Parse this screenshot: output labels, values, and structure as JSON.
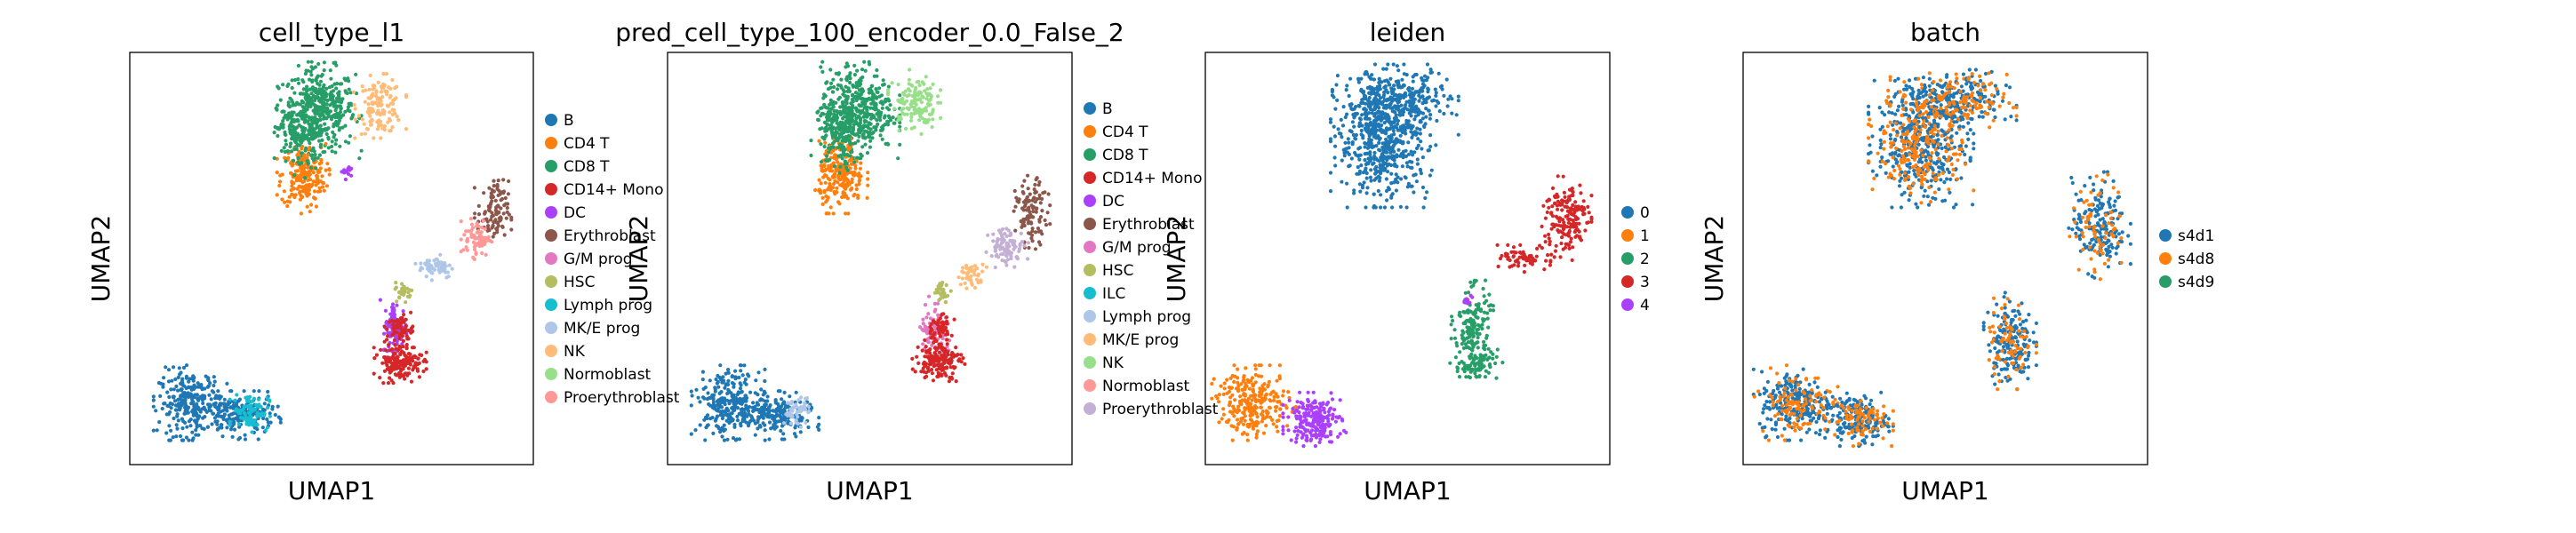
{
  "chart_data": [
    {
      "type": "scatter",
      "title": "cell_type_l1",
      "xlabel": "UMAP1",
      "ylabel": "UMAP2",
      "ticks": false,
      "grid": false,
      "legend_position": "right",
      "legend": [
        {
          "label": "B",
          "color": "#1f77b4"
        },
        {
          "label": "CD4 T",
          "color": "#ff7f0e"
        },
        {
          "label": "CD8 T",
          "color": "#279e68"
        },
        {
          "label": "CD14+ Mono",
          "color": "#d62728"
        },
        {
          "label": "DC",
          "color": "#aa40fc"
        },
        {
          "label": "Erythroblast",
          "color": "#8c564b"
        },
        {
          "label": "G/M prog",
          "color": "#e377c2"
        },
        {
          "label": "HSC",
          "color": "#b5bd61"
        },
        {
          "label": "Lymph prog",
          "color": "#17becf"
        },
        {
          "label": "MK/E prog",
          "color": "#aec7e8"
        },
        {
          "label": "NK",
          "color": "#ffbb78"
        },
        {
          "label": "Normoblast",
          "color": "#98df8a"
        },
        {
          "label": "Proerythroblast",
          "color": "#ff9896"
        }
      ],
      "clusters": [
        {
          "category": "CD8 T",
          "x": 0.47,
          "y": 0.86,
          "rx": 0.08,
          "ry": 0.09,
          "n": 420
        },
        {
          "category": "NK",
          "x": 0.62,
          "y": 0.87,
          "rx": 0.05,
          "ry": 0.06,
          "n": 140
        },
        {
          "category": "CD4 T",
          "x": 0.43,
          "y": 0.7,
          "rx": 0.05,
          "ry": 0.07,
          "n": 220
        },
        {
          "category": "CD8 T",
          "x": 0.42,
          "y": 0.8,
          "rx": 0.05,
          "ry": 0.08,
          "n": 150
        },
        {
          "category": "DC",
          "x": 0.54,
          "y": 0.71,
          "rx": 0.015,
          "ry": 0.015,
          "n": 12
        },
        {
          "category": "B",
          "x": 0.15,
          "y": 0.15,
          "rx": 0.07,
          "ry": 0.07,
          "n": 260
        },
        {
          "category": "B",
          "x": 0.27,
          "y": 0.12,
          "rx": 0.08,
          "ry": 0.045,
          "n": 200
        },
        {
          "category": "Lymph prog",
          "x": 0.3,
          "y": 0.13,
          "rx": 0.04,
          "ry": 0.04,
          "n": 90
        },
        {
          "category": "Erythroblast",
          "x": 0.9,
          "y": 0.61,
          "rx": 0.035,
          "ry": 0.07,
          "n": 110
        },
        {
          "category": "Proerythroblast",
          "x": 0.86,
          "y": 0.55,
          "rx": 0.03,
          "ry": 0.04,
          "n": 70
        },
        {
          "category": "MK/E prog",
          "x": 0.76,
          "y": 0.48,
          "rx": 0.04,
          "ry": 0.025,
          "n": 60
        },
        {
          "category": "HSC",
          "x": 0.68,
          "y": 0.42,
          "rx": 0.02,
          "ry": 0.02,
          "n": 30
        },
        {
          "category": "DC",
          "x": 0.66,
          "y": 0.33,
          "rx": 0.03,
          "ry": 0.06,
          "n": 90
        },
        {
          "category": "CD14+ Mono",
          "x": 0.67,
          "y": 0.25,
          "rx": 0.05,
          "ry": 0.04,
          "n": 160
        },
        {
          "category": "CD14+ Mono",
          "x": 0.67,
          "y": 0.33,
          "rx": 0.03,
          "ry": 0.03,
          "n": 60
        }
      ]
    },
    {
      "type": "scatter",
      "title": "pred_cell_type_100_encoder_0.0_False_2",
      "xlabel": "UMAP1",
      "ylabel": "UMAP2",
      "ticks": false,
      "grid": false,
      "legend_position": "right",
      "legend": [
        {
          "label": "B",
          "color": "#1f77b4"
        },
        {
          "label": "CD4 T",
          "color": "#ff7f0e"
        },
        {
          "label": "CD8 T",
          "color": "#279e68"
        },
        {
          "label": "CD14+ Mono",
          "color": "#d62728"
        },
        {
          "label": "DC",
          "color": "#aa40fc"
        },
        {
          "label": "Erythroblast",
          "color": "#8c564b"
        },
        {
          "label": "G/M prog",
          "color": "#e377c2"
        },
        {
          "label": "HSC",
          "color": "#b5bd61"
        },
        {
          "label": "ILC",
          "color": "#17becf"
        },
        {
          "label": "Lymph prog",
          "color": "#aec7e8"
        },
        {
          "label": "MK/E prog",
          "color": "#ffbb78"
        },
        {
          "label": "NK",
          "color": "#98df8a"
        },
        {
          "label": "Normoblast",
          "color": "#ff9896"
        },
        {
          "label": "Proerythroblast",
          "color": "#c5b0d5"
        }
      ],
      "clusters": [
        {
          "category": "CD8 T",
          "x": 0.47,
          "y": 0.86,
          "rx": 0.08,
          "ry": 0.09,
          "n": 420
        },
        {
          "category": "NK",
          "x": 0.61,
          "y": 0.88,
          "rx": 0.05,
          "ry": 0.06,
          "n": 140
        },
        {
          "category": "CD4 T",
          "x": 0.43,
          "y": 0.7,
          "rx": 0.05,
          "ry": 0.07,
          "n": 220
        },
        {
          "category": "CD8 T",
          "x": 0.42,
          "y": 0.8,
          "rx": 0.05,
          "ry": 0.08,
          "n": 150
        },
        {
          "category": "B",
          "x": 0.15,
          "y": 0.15,
          "rx": 0.07,
          "ry": 0.07,
          "n": 260
        },
        {
          "category": "B",
          "x": 0.27,
          "y": 0.12,
          "rx": 0.08,
          "ry": 0.045,
          "n": 220
        },
        {
          "category": "Lymph prog",
          "x": 0.32,
          "y": 0.13,
          "rx": 0.03,
          "ry": 0.03,
          "n": 50
        },
        {
          "category": "Erythroblast",
          "x": 0.9,
          "y": 0.61,
          "rx": 0.035,
          "ry": 0.07,
          "n": 110
        },
        {
          "category": "Proerythroblast",
          "x": 0.84,
          "y": 0.53,
          "rx": 0.04,
          "ry": 0.04,
          "n": 90
        },
        {
          "category": "MK/E prog",
          "x": 0.75,
          "y": 0.46,
          "rx": 0.03,
          "ry": 0.025,
          "n": 40
        },
        {
          "category": "HSC",
          "x": 0.68,
          "y": 0.42,
          "rx": 0.02,
          "ry": 0.02,
          "n": 30
        },
        {
          "category": "G/M prog",
          "x": 0.66,
          "y": 0.33,
          "rx": 0.03,
          "ry": 0.06,
          "n": 90
        },
        {
          "category": "CD14+ Mono",
          "x": 0.67,
          "y": 0.25,
          "rx": 0.05,
          "ry": 0.04,
          "n": 160
        },
        {
          "category": "CD14+ Mono",
          "x": 0.67,
          "y": 0.33,
          "rx": 0.03,
          "ry": 0.03,
          "n": 60
        }
      ]
    },
    {
      "type": "scatter",
      "title": "leiden",
      "xlabel": "UMAP1",
      "ylabel": "UMAP2",
      "ticks": false,
      "grid": false,
      "legend_position": "right",
      "legend": [
        {
          "label": "0",
          "color": "#1f77b4"
        },
        {
          "label": "1",
          "color": "#ff7f0e"
        },
        {
          "label": "2",
          "color": "#279e68"
        },
        {
          "label": "3",
          "color": "#d62728"
        },
        {
          "label": "4",
          "color": "#aa40fc"
        }
      ],
      "clusters": [
        {
          "category": "0",
          "x": 0.44,
          "y": 0.78,
          "rx": 0.1,
          "ry": 0.12,
          "n": 520
        },
        {
          "category": "0",
          "x": 0.47,
          "y": 0.88,
          "rx": 0.12,
          "ry": 0.07,
          "n": 320
        },
        {
          "category": "1",
          "x": 0.12,
          "y": 0.15,
          "rx": 0.08,
          "ry": 0.07,
          "n": 260
        },
        {
          "category": "4",
          "x": 0.27,
          "y": 0.11,
          "rx": 0.06,
          "ry": 0.05,
          "n": 220
        },
        {
          "category": "3",
          "x": 0.89,
          "y": 0.6,
          "rx": 0.05,
          "ry": 0.08,
          "n": 170
        },
        {
          "category": "3",
          "x": 0.8,
          "y": 0.5,
          "rx": 0.06,
          "ry": 0.025,
          "n": 70
        },
        {
          "category": "2",
          "x": 0.66,
          "y": 0.33,
          "rx": 0.04,
          "ry": 0.09,
          "n": 170
        },
        {
          "category": "2",
          "x": 0.67,
          "y": 0.24,
          "rx": 0.05,
          "ry": 0.03,
          "n": 70
        },
        {
          "category": "4",
          "x": 0.65,
          "y": 0.4,
          "rx": 0.015,
          "ry": 0.015,
          "n": 10
        }
      ]
    },
    {
      "type": "scatter",
      "title": "batch",
      "xlabel": "UMAP1",
      "ylabel": "UMAP2",
      "ticks": false,
      "grid": false,
      "legend_position": "right",
      "legend": [
        {
          "label": "s4d1",
          "color": "#1f77b4"
        },
        {
          "label": "s4d8",
          "color": "#ff7f0e"
        },
        {
          "label": "s4d9",
          "color": "#279e68"
        }
      ],
      "clusters": [
        {
          "category": "s4d1",
          "x": 0.44,
          "y": 0.78,
          "rx": 0.1,
          "ry": 0.12,
          "n": 380
        },
        {
          "category": "s4d8",
          "x": 0.44,
          "y": 0.78,
          "rx": 0.1,
          "ry": 0.12,
          "n": 220
        },
        {
          "category": "s4d1",
          "x": 0.52,
          "y": 0.88,
          "rx": 0.12,
          "ry": 0.06,
          "n": 220
        },
        {
          "category": "s4d8",
          "x": 0.52,
          "y": 0.88,
          "rx": 0.12,
          "ry": 0.06,
          "n": 130
        },
        {
          "category": "s4d1",
          "x": 0.13,
          "y": 0.15,
          "rx": 0.08,
          "ry": 0.07,
          "n": 220
        },
        {
          "category": "s4d8",
          "x": 0.13,
          "y": 0.15,
          "rx": 0.08,
          "ry": 0.07,
          "n": 110
        },
        {
          "category": "s4d1",
          "x": 0.28,
          "y": 0.11,
          "rx": 0.07,
          "ry": 0.05,
          "n": 170
        },
        {
          "category": "s4d8",
          "x": 0.28,
          "y": 0.11,
          "rx": 0.07,
          "ry": 0.05,
          "n": 80
        },
        {
          "category": "s4d1",
          "x": 0.88,
          "y": 0.58,
          "rx": 0.06,
          "ry": 0.1,
          "n": 170
        },
        {
          "category": "s4d8",
          "x": 0.88,
          "y": 0.58,
          "rx": 0.06,
          "ry": 0.1,
          "n": 70
        },
        {
          "category": "s4d1",
          "x": 0.66,
          "y": 0.3,
          "rx": 0.05,
          "ry": 0.09,
          "n": 170
        },
        {
          "category": "s4d8",
          "x": 0.66,
          "y": 0.3,
          "rx": 0.05,
          "ry": 0.09,
          "n": 70
        }
      ]
    }
  ]
}
